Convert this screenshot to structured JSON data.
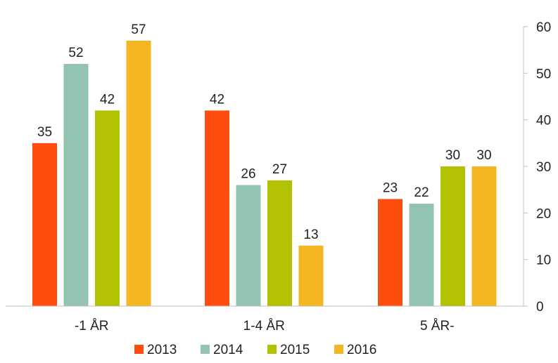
{
  "chart_data": {
    "type": "bar",
    "categories": [
      "-1 ÅR",
      "1-4 ÅR",
      "5 ÅR-"
    ],
    "series": [
      {
        "name": "2013",
        "color": "#ff4d0f",
        "values": [
          35,
          42,
          23
        ],
        "labels": [
          "35",
          "42",
          "23"
        ]
      },
      {
        "name": "2014",
        "color": "#93c4b2",
        "values": [
          52,
          26,
          22
        ],
        "labels": [
          "52",
          "26",
          "22"
        ]
      },
      {
        "name": "2015",
        "color": "#b2c100",
        "values": [
          42,
          27,
          30
        ],
        "labels": [
          "42",
          "27",
          "30"
        ]
      },
      {
        "name": "2016",
        "color": "#f5b623",
        "values": [
          57,
          13,
          30
        ],
        "labels": [
          "57",
          "13",
          "30"
        ]
      }
    ],
    "y_ticks": [
      "0",
      "10",
      "20",
      "30",
      "40",
      "50",
      "60"
    ],
    "ylim": [
      0,
      60
    ],
    "y_axis_position": "right",
    "grid": false,
    "legend_position": "bottom"
  }
}
